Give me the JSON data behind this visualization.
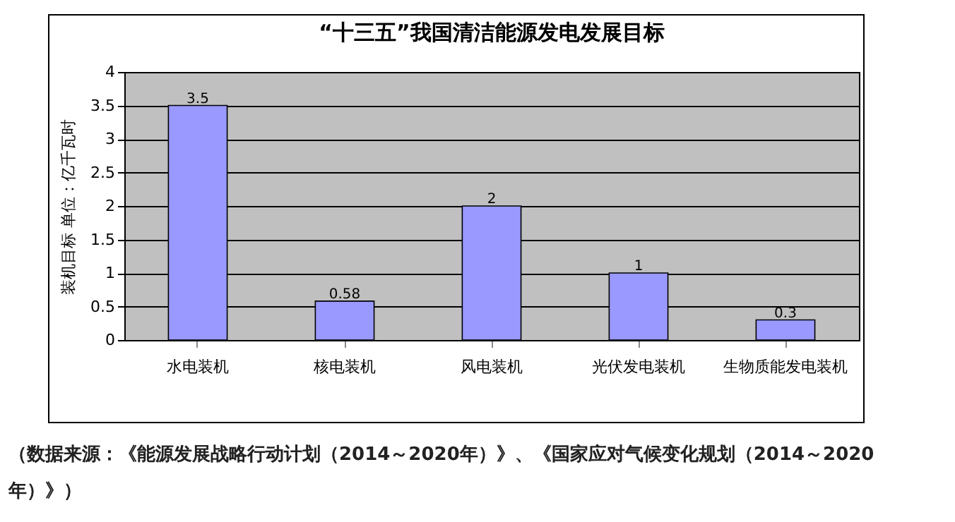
{
  "chart_data": {
    "type": "bar",
    "title": "“十三五”我国清洁能源发电发展目标",
    "ylabel": "装机目标 单位：亿千瓦时",
    "categories": [
      "水电装机",
      "核电装机",
      "风电装机",
      "光伏发电装机",
      "生物质能发电装机"
    ],
    "values": [
      3.5,
      0.58,
      2,
      1,
      0.3
    ],
    "color": "#9999ff",
    "data_labels": true,
    "grid": "y",
    "ylim": [
      0,
      4
    ],
    "yticks": [
      0,
      0.5,
      1,
      1.5,
      2,
      2.5,
      3,
      3.5,
      4
    ],
    "annotations": [
      "（数据来源：《能源发展战略行动计划（2014～2020年）》、《国家应对气候变化规划（2014～2020年）》）"
    ]
  }
}
